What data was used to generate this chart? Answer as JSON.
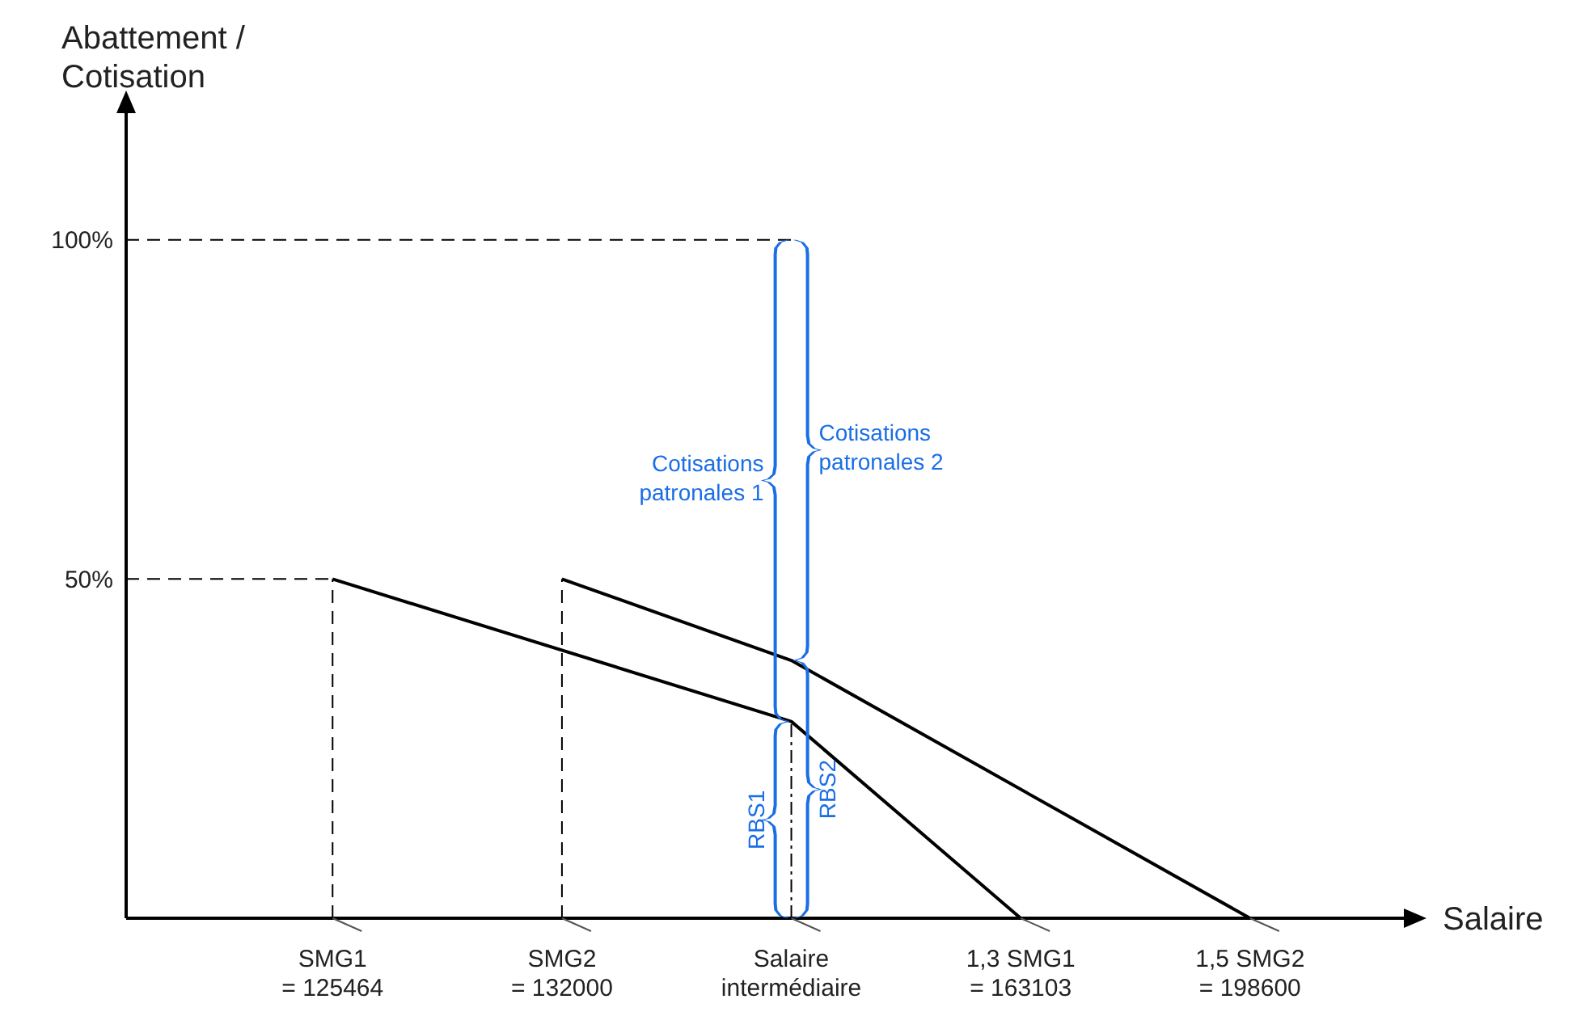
{
  "chart_data": {
    "type": "line",
    "xlabel": "Salaire",
    "ylabel": "Abattement / Cotisation",
    "categories": [
      "SMG1\n= 125464",
      "SMG2\n= 132000",
      "Salaire\nintermédiaire",
      "1,3 SMG1\n= 163103",
      "1,5 SMG2\n= 198600"
    ],
    "series": [
      {
        "color": "#000000",
        "values": [
          50,
          null,
          29,
          0,
          null
        ]
      },
      {
        "color": "#000000",
        "values": [
          null,
          50,
          38,
          null,
          0
        ]
      }
    ],
    "ylim": [
      0,
      112
    ],
    "yticks": [
      {
        "value": 50,
        "label": "50%"
      },
      {
        "value": 100,
        "label": "100%"
      }
    ],
    "ref_lines": [
      {
        "axis": "y",
        "value": 50,
        "line_style": "dashed"
      },
      {
        "axis": "y",
        "value": 100,
        "line_style": "dashed"
      },
      {
        "axis": "x",
        "value": "SMG1\n= 125464",
        "line_style": "dashed"
      },
      {
        "axis": "x",
        "value": "SMG2\n= 132000",
        "line_style": "dashed"
      },
      {
        "axis": "x",
        "value": "Salaire\nintermédiaire",
        "line_style": "dashdot"
      }
    ],
    "annotations": [
      "Cotisations patronales 1",
      "Cotisations patronales 2",
      "RBS1",
      "RBS2"
    ],
    "grid": false,
    "legend": false,
    "marker": "none",
    "line_style": "solid"
  }
}
